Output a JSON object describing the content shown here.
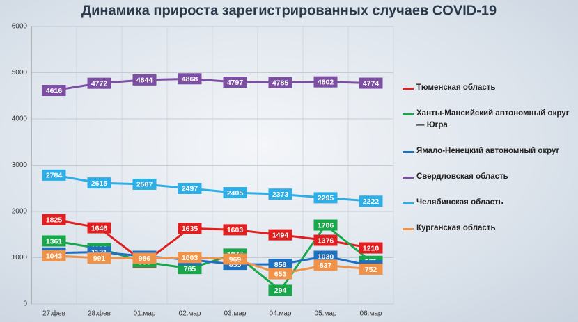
{
  "chart_data": {
    "type": "line",
    "title": "Динамика прироста зарегистрированных случаев COVID-19",
    "categories": [
      "27.фев",
      "28.фев",
      "01.мар",
      "02.мар",
      "03.мар",
      "04.мар",
      "05.мар",
      "06.мар"
    ],
    "series": [
      {
        "name": "Тюменская область",
        "color": "#e02020",
        "values": [
          1825,
          1646,
          896,
          1635,
          1603,
          1494,
          1376,
          1210
        ]
      },
      {
        "name": "Ханты-Мансийский автономный округ — Югра",
        "color": "#1aa64a",
        "values": [
          1361,
          1198,
          906,
          765,
          1077,
          294,
          1706,
          921
        ]
      },
      {
        "name": "Ямало-Ненецкий автономный округ",
        "color": "#1e6fc0",
        "values": [
          1100,
          1121,
          1030,
          955,
          855,
          856,
          1030,
          825
        ]
      },
      {
        "name": "Свердловская область",
        "color": "#7c4fa3",
        "values": [
          4616,
          4772,
          4844,
          4868,
          4797,
          4785,
          4802,
          4774
        ]
      },
      {
        "name": "Челябинская область",
        "color": "#2eaee6",
        "values": [
          2784,
          2615,
          2587,
          2497,
          2405,
          2373,
          2295,
          2222
        ]
      },
      {
        "name": "Курганская область",
        "color": "#f0934a",
        "values": [
          1043,
          991,
          986,
          1003,
          969,
          653,
          837,
          752
        ]
      }
    ],
    "ylim": [
      0,
      6000
    ],
    "yticks": [
      0,
      1000,
      2000,
      3000,
      4000,
      5000,
      6000
    ],
    "grid": true
  }
}
